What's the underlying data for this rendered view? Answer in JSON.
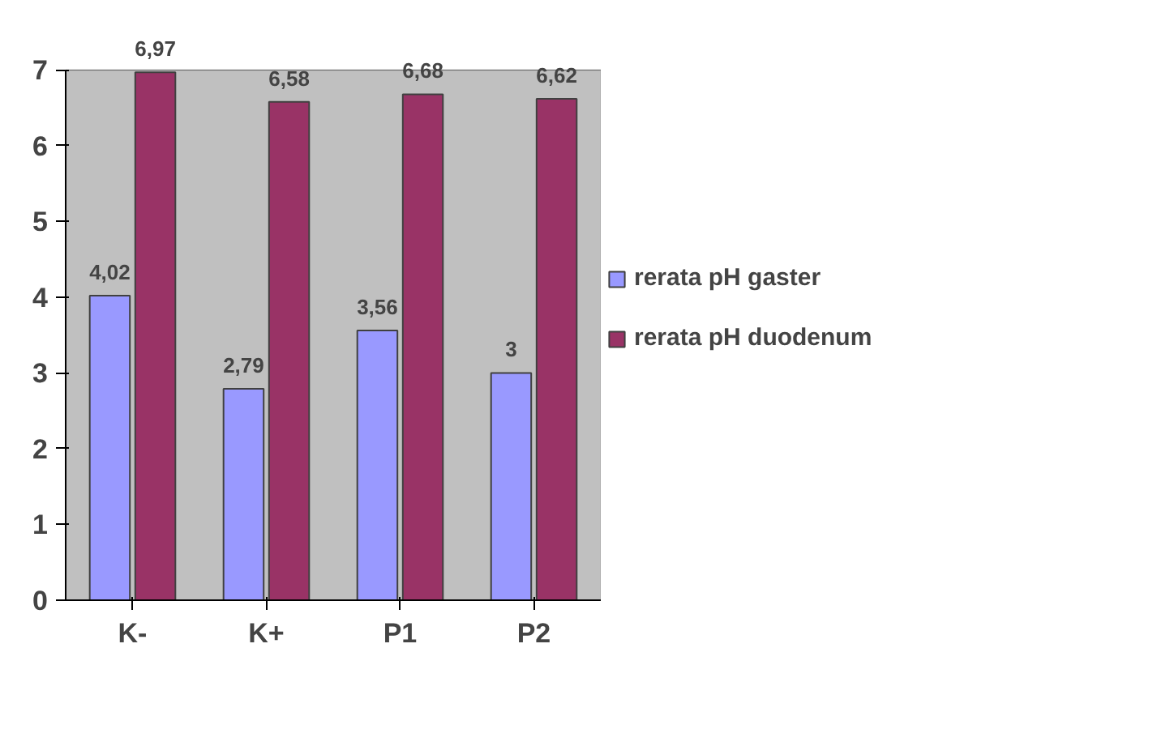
{
  "chart_data": {
    "type": "bar",
    "categories": [
      "K-",
      "K+",
      "P1",
      "P2"
    ],
    "series": [
      {
        "name": "rerata pH gaster",
        "color": "#9999ff",
        "values": [
          4.02,
          2.79,
          3.56,
          3
        ],
        "value_labels": [
          "4,02",
          "2,79",
          "3,56",
          "3"
        ]
      },
      {
        "name": "rerata pH duodenum",
        "color": "#993366",
        "values": [
          6.97,
          6.58,
          6.68,
          6.62
        ],
        "value_labels": [
          "6,97",
          "6,58",
          "6,68",
          "6,62"
        ]
      }
    ],
    "ylim": [
      0,
      7
    ],
    "yticks": [
      0,
      1,
      2,
      3,
      4,
      5,
      6,
      7
    ],
    "grid": "y",
    "legend": "right"
  }
}
